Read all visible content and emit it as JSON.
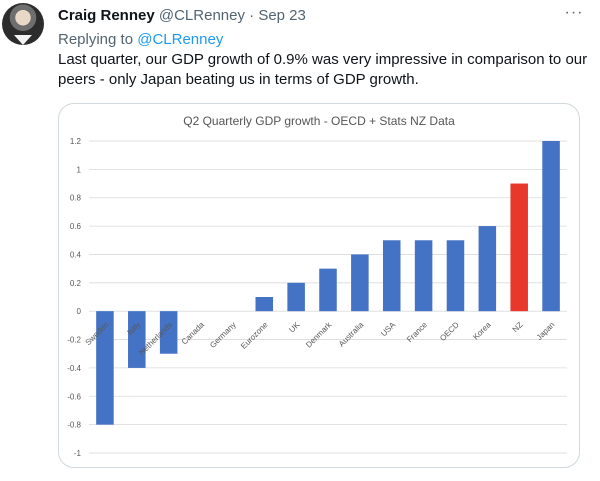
{
  "tweet": {
    "author_name": "Craig Renney",
    "handle": "@CLRenney",
    "separator": "·",
    "date": "Sep 23",
    "more_label": "···",
    "replying_prefix": "Replying to",
    "replying_to": "@CLRenney",
    "text": "Last quarter, our GDP growth of 0.9% was very impressive in comparison to our peers - only Japan beating us in terms of GDP growth."
  },
  "colors": {
    "bar": "#4472c4",
    "highlight": "#e8382b",
    "grid": "#d9d9d9"
  },
  "chart_data": {
    "type": "bar",
    "title": "Q2 Quarterly GDP growth - OECD + Stats NZ Data",
    "categories": [
      "Sweden",
      "Italy",
      "Netherlands",
      "Canada",
      "Germany",
      "Eurozone",
      "UK",
      "Denmark",
      "Australia",
      "USA",
      "France",
      "OECD",
      "Korea",
      "NZ",
      "Japan"
    ],
    "values": [
      -0.8,
      -0.4,
      -0.3,
      0,
      0,
      0.1,
      0.2,
      0.3,
      0.4,
      0.5,
      0.5,
      0.5,
      0.6,
      0.9,
      1.2
    ],
    "highlight": "NZ",
    "ylim": [
      -1,
      1.2
    ],
    "yticks": [
      1.2,
      1,
      0.8,
      0.6,
      0.4,
      0.2,
      0,
      -0.2,
      -0.4,
      -0.6,
      -0.8,
      -1
    ],
    "grid": true,
    "xlabel": "",
    "ylabel": ""
  }
}
